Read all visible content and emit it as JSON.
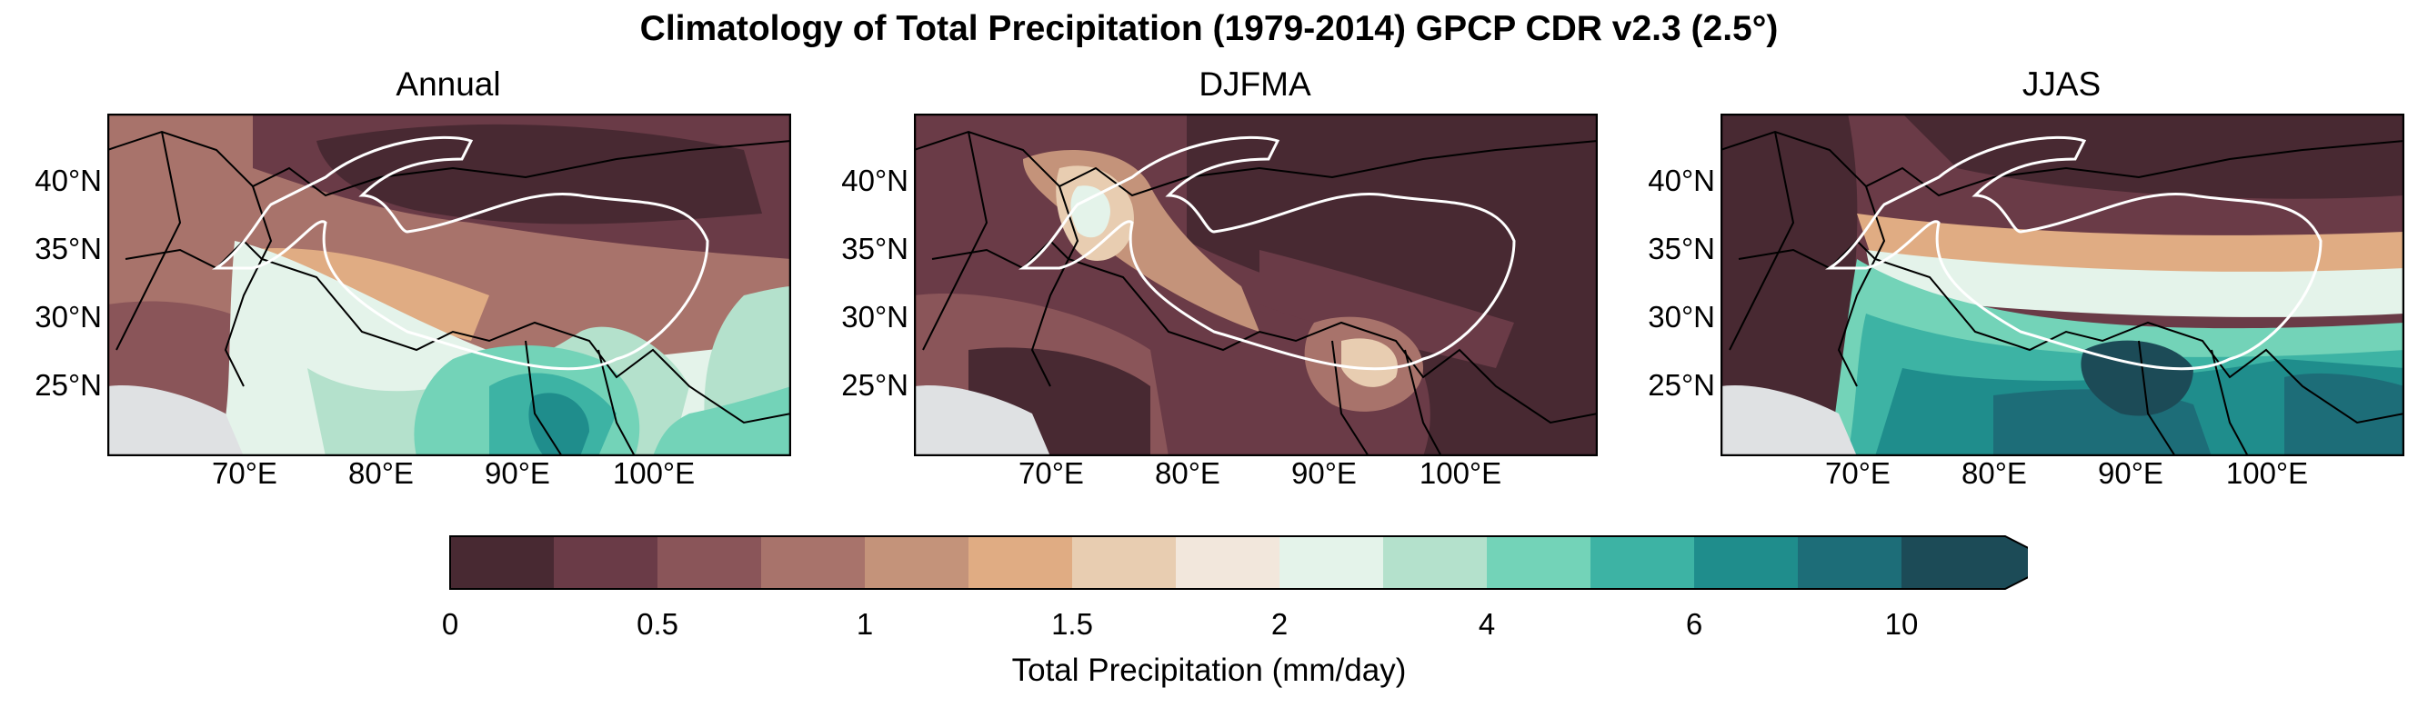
{
  "title": "Climatology of Total Precipitation (1979-2014) GPCP CDR v2.3 (2.5°)",
  "panels": [
    {
      "title": "Annual"
    },
    {
      "title": "DJFMA"
    },
    {
      "title": "JJAS"
    }
  ],
  "lat_ticks": [
    "40°N",
    "35°N",
    "30°N",
    "25°N"
  ],
  "lon_ticks": [
    "70°E",
    "80°E",
    "90°E",
    "100°E"
  ],
  "colorbar": {
    "label": "Total Precipitation (mm/day)",
    "ticks": [
      "0",
      "0.5",
      "1",
      "1.5",
      "2",
      "4",
      "6",
      "10"
    ],
    "colors": [
      "#482932",
      "#6a3b47",
      "#8a5559",
      "#a8736b",
      "#c4937a",
      "#e0ac83",
      "#e8cdb1",
      "#f2e7dc",
      "#e4f3ea",
      "#b4e1cc",
      "#73d3b8",
      "#3db3a4",
      "#1f8d8c",
      "#1d6d78",
      "#1c4b57"
    ],
    "extend": "max"
  },
  "colors": {
    "land_mask": "#dfe1e3",
    "outline": "#ffffff"
  }
}
